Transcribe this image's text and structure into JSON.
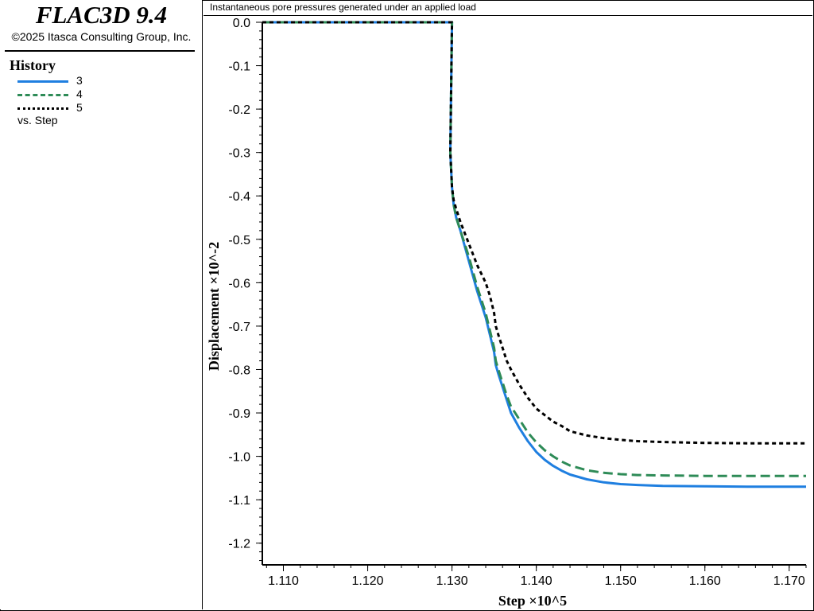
{
  "app": {
    "title": "FLAC3D 9.4",
    "copyright": "©2025 Itasca Consulting Group, Inc."
  },
  "legend": {
    "title": "History",
    "items": [
      {
        "label": "3",
        "color": "#1f7fe0",
        "style": "solid"
      },
      {
        "label": "4",
        "color": "#2e8b57",
        "style": "dashed"
      },
      {
        "label": "5",
        "color": "#000000",
        "style": "dotted"
      }
    ],
    "vs_label": "vs. Step"
  },
  "chart_data": {
    "type": "line",
    "title": "Instantaneous pore pressures generated under an applied load",
    "xlabel": "Step ×10^5",
    "ylabel": "Displacement ×10^-2",
    "xlim": [
      1.1075,
      1.172
    ],
    "ylim": [
      -1.25,
      0.0
    ],
    "x_ticks": [
      "1.110",
      "1.120",
      "1.130",
      "1.140",
      "1.150",
      "1.160",
      "1.170"
    ],
    "y_ticks": [
      "0.0",
      "-0.1",
      "-0.2",
      "-0.3",
      "-0.4",
      "-0.5",
      "-0.6",
      "-0.7",
      "-0.8",
      "-0.9",
      "-1.0",
      "-1.1",
      "-1.2"
    ],
    "series": [
      {
        "name": "3",
        "x": [
          1.1075,
          1.13,
          1.1298,
          1.13,
          1.1302,
          1.1305,
          1.131,
          1.132,
          1.133,
          1.134,
          1.1345,
          1.135,
          1.1352,
          1.1355,
          1.136,
          1.1365,
          1.137,
          1.138,
          1.139,
          1.14,
          1.141,
          1.142,
          1.143,
          1.144,
          1.146,
          1.148,
          1.15,
          1.152,
          1.155,
          1.16,
          1.165,
          1.172
        ],
        "y": [
          0.0,
          0.0,
          -0.3,
          -0.38,
          -0.42,
          -0.45,
          -0.48,
          -0.55,
          -0.62,
          -0.68,
          -0.72,
          -0.76,
          -0.79,
          -0.81,
          -0.84,
          -0.87,
          -0.9,
          -0.935,
          -0.965,
          -0.99,
          -1.008,
          -1.022,
          -1.033,
          -1.042,
          -1.053,
          -1.06,
          -1.064,
          -1.066,
          -1.068,
          -1.069,
          -1.07,
          -1.07
        ]
      },
      {
        "name": "4",
        "x": [
          1.1075,
          1.13,
          1.1298,
          1.13,
          1.1302,
          1.1305,
          1.131,
          1.132,
          1.133,
          1.134,
          1.1345,
          1.135,
          1.1352,
          1.1355,
          1.136,
          1.1365,
          1.137,
          1.138,
          1.139,
          1.14,
          1.141,
          1.142,
          1.143,
          1.144,
          1.146,
          1.148,
          1.15,
          1.152,
          1.155,
          1.16,
          1.165,
          1.172
        ],
        "y": [
          0.0,
          0.0,
          -0.3,
          -0.38,
          -0.42,
          -0.45,
          -0.48,
          -0.54,
          -0.61,
          -0.67,
          -0.71,
          -0.75,
          -0.78,
          -0.8,
          -0.83,
          -0.86,
          -0.885,
          -0.915,
          -0.945,
          -0.968,
          -0.986,
          -1.0,
          -1.012,
          -1.021,
          -1.032,
          -1.038,
          -1.041,
          -1.043,
          -1.044,
          -1.045,
          -1.045,
          -1.045
        ]
      },
      {
        "name": "5",
        "x": [
          1.1075,
          1.13,
          1.1298,
          1.13,
          1.1302,
          1.1305,
          1.131,
          1.132,
          1.133,
          1.134,
          1.1345,
          1.135,
          1.1352,
          1.1355,
          1.136,
          1.1365,
          1.137,
          1.138,
          1.139,
          1.14,
          1.141,
          1.142,
          1.143,
          1.144,
          1.146,
          1.148,
          1.15,
          1.152,
          1.155,
          1.16,
          1.165,
          1.172
        ],
        "y": [
          0.0,
          0.0,
          -0.3,
          -0.38,
          -0.41,
          -0.43,
          -0.46,
          -0.51,
          -0.56,
          -0.6,
          -0.63,
          -0.67,
          -0.7,
          -0.72,
          -0.75,
          -0.78,
          -0.8,
          -0.835,
          -0.865,
          -0.89,
          -0.905,
          -0.92,
          -0.93,
          -0.942,
          -0.952,
          -0.958,
          -0.962,
          -0.965,
          -0.967,
          -0.969,
          -0.97,
          -0.97
        ]
      }
    ],
    "grid": false,
    "legend_position": "left-panel"
  }
}
